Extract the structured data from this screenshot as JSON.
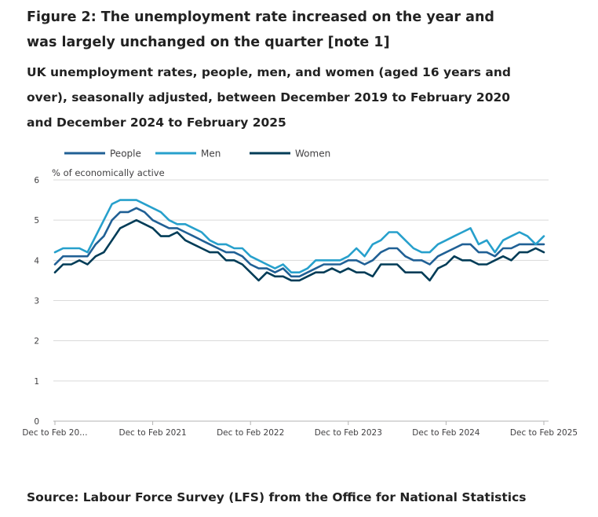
{
  "header": {
    "title": "Figure 2: The unemployment rate increased on the year and was largely unchanged on the quarter [note 1]",
    "subtitle": "UK unemployment rates, people, men, and women (aged 16 years and over), seasonally adjusted, between December 2019 to February 2020 and December 2024 to February 2025"
  },
  "footer": {
    "source": "Source: Labour Force Survey (LFS) from the Office for National Statistics"
  },
  "chart_data": {
    "type": "line",
    "title": "Figure 2: The unemployment rate increased on the year and was largely unchanged on the quarter [note 1]",
    "ylabel": "% of economically active",
    "xlabel": "",
    "ylim": [
      0,
      6
    ],
    "yticks": [
      0,
      1,
      2,
      3,
      4,
      5,
      6
    ],
    "grid": true,
    "legend_position": "top-left",
    "n_periods": 61,
    "x_ticks": [
      {
        "index": 0,
        "label": "Dec to Feb 20…"
      },
      {
        "index": 12,
        "label": "Dec to Feb 2021"
      },
      {
        "index": 24,
        "label": "Dec to Feb 2022"
      },
      {
        "index": 36,
        "label": "Dec to Feb 2023"
      },
      {
        "index": 48,
        "label": "Dec to Feb 2024"
      },
      {
        "index": 60,
        "label": "Dec to Feb 2025"
      }
    ],
    "series": [
      {
        "name": "People",
        "color": "#206095",
        "values": [
          3.9,
          4.1,
          4.1,
          4.1,
          4.1,
          4.4,
          4.6,
          5.0,
          5.2,
          5.2,
          5.3,
          5.2,
          5.0,
          4.9,
          4.8,
          4.8,
          4.7,
          4.6,
          4.5,
          4.4,
          4.3,
          4.2,
          4.2,
          4.1,
          3.9,
          3.8,
          3.8,
          3.7,
          3.8,
          3.6,
          3.6,
          3.7,
          3.8,
          3.9,
          3.9,
          3.9,
          4.0,
          4.0,
          3.9,
          4.0,
          4.2,
          4.3,
          4.3,
          4.1,
          4.0,
          4.0,
          3.9,
          4.1,
          4.2,
          4.3,
          4.4,
          4.4,
          4.2,
          4.2,
          4.1,
          4.3,
          4.3,
          4.4,
          4.4,
          4.4,
          4.4
        ]
      },
      {
        "name": "Men",
        "color": "#27a0cc",
        "values": [
          4.2,
          4.3,
          4.3,
          4.3,
          4.2,
          4.6,
          5.0,
          5.4,
          5.5,
          5.5,
          5.5,
          5.4,
          5.3,
          5.2,
          5.0,
          4.9,
          4.9,
          4.8,
          4.7,
          4.5,
          4.4,
          4.4,
          4.3,
          4.3,
          4.1,
          4.0,
          3.9,
          3.8,
          3.9,
          3.7,
          3.7,
          3.8,
          4.0,
          4.0,
          4.0,
          4.0,
          4.1,
          4.3,
          4.1,
          4.4,
          4.5,
          4.7,
          4.7,
          4.5,
          4.3,
          4.2,
          4.2,
          4.4,
          4.5,
          4.6,
          4.7,
          4.8,
          4.4,
          4.5,
          4.2,
          4.5,
          4.6,
          4.7,
          4.6,
          4.4,
          4.6
        ]
      },
      {
        "name": "Women",
        "color": "#003c57",
        "values": [
          3.7,
          3.9,
          3.9,
          4.0,
          3.9,
          4.1,
          4.2,
          4.5,
          4.8,
          4.9,
          5.0,
          4.9,
          4.8,
          4.6,
          4.6,
          4.7,
          4.5,
          4.4,
          4.3,
          4.2,
          4.2,
          4.0,
          4.0,
          3.9,
          3.7,
          3.5,
          3.7,
          3.6,
          3.6,
          3.5,
          3.5,
          3.6,
          3.7,
          3.7,
          3.8,
          3.7,
          3.8,
          3.7,
          3.7,
          3.6,
          3.9,
          3.9,
          3.9,
          3.7,
          3.7,
          3.7,
          3.5,
          3.8,
          3.9,
          4.1,
          4.0,
          4.0,
          3.9,
          3.9,
          4.0,
          4.1,
          4.0,
          4.2,
          4.2,
          4.3,
          4.2
        ]
      }
    ]
  }
}
